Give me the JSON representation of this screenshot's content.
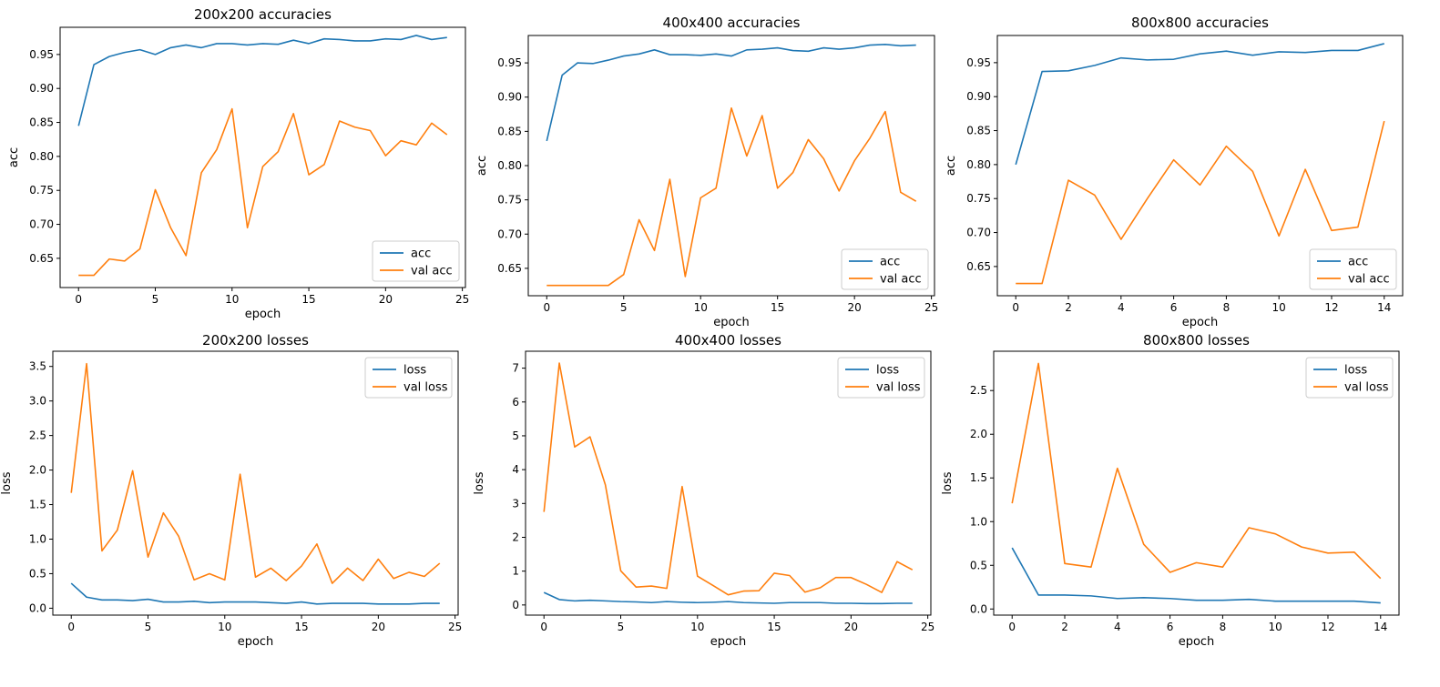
{
  "colors": {
    "series1": "#1f77b4",
    "series2": "#ff7f0e"
  },
  "chart_data": [
    {
      "type": "line",
      "title": "200x200 accuracies",
      "xlabel": "epoch",
      "ylabel": "acc",
      "xlim": [
        -1.2,
        25.2
      ],
      "ylim": [
        0.607,
        0.99
      ],
      "xticks": [
        0,
        5,
        10,
        15,
        20,
        25
      ],
      "yticks": [
        0.65,
        0.7,
        0.75,
        0.8,
        0.85,
        0.9,
        0.95
      ],
      "ytick_decimals": 2,
      "legend": "bottom-right",
      "series": [
        {
          "name": "acc",
          "x": [
            0,
            1,
            2,
            3,
            4,
            5,
            6,
            7,
            8,
            9,
            10,
            11,
            12,
            13,
            14,
            15,
            16,
            17,
            18,
            19,
            20,
            21,
            22,
            23,
            24
          ],
          "values": [
            0.845,
            0.935,
            0.947,
            0.953,
            0.957,
            0.95,
            0.96,
            0.964,
            0.96,
            0.966,
            0.966,
            0.964,
            0.966,
            0.965,
            0.971,
            0.966,
            0.973,
            0.972,
            0.97,
            0.97,
            0.973,
            0.972,
            0.978,
            0.972,
            0.975
          ]
        },
        {
          "name": "val acc",
          "x": [
            0,
            1,
            2,
            3,
            4,
            5,
            6,
            7,
            8,
            9,
            10,
            11,
            12,
            13,
            14,
            15,
            16,
            17,
            18,
            19,
            20,
            21,
            22,
            23,
            24
          ],
          "values": [
            0.625,
            0.625,
            0.649,
            0.646,
            0.664,
            0.751,
            0.695,
            0.654,
            0.776,
            0.81,
            0.87,
            0.695,
            0.785,
            0.807,
            0.863,
            0.773,
            0.788,
            0.852,
            0.843,
            0.838,
            0.801,
            0.823,
            0.817,
            0.849,
            0.832
          ]
        }
      ]
    },
    {
      "type": "line",
      "title": "400x400 accuracies",
      "xlabel": "epoch",
      "ylabel": "acc",
      "xlim": [
        -1.2,
        25.2
      ],
      "ylim": [
        0.61,
        0.99
      ],
      "xticks": [
        0,
        5,
        10,
        15,
        20,
        25
      ],
      "yticks": [
        0.65,
        0.7,
        0.75,
        0.8,
        0.85,
        0.9,
        0.95
      ],
      "ytick_decimals": 2,
      "legend": "bottom-right",
      "series": [
        {
          "name": "acc",
          "x": [
            0,
            1,
            2,
            3,
            4,
            5,
            6,
            7,
            8,
            9,
            10,
            11,
            12,
            13,
            14,
            15,
            16,
            17,
            18,
            19,
            20,
            21,
            22,
            23,
            24
          ],
          "values": [
            0.836,
            0.932,
            0.95,
            0.949,
            0.954,
            0.96,
            0.963,
            0.969,
            0.962,
            0.962,
            0.961,
            0.963,
            0.96,
            0.969,
            0.97,
            0.972,
            0.968,
            0.967,
            0.972,
            0.97,
            0.972,
            0.976,
            0.977,
            0.975,
            0.976
          ]
        },
        {
          "name": "val acc",
          "x": [
            0,
            1,
            2,
            3,
            4,
            5,
            6,
            7,
            8,
            9,
            10,
            11,
            12,
            13,
            14,
            15,
            16,
            17,
            18,
            19,
            20,
            21,
            22,
            23,
            24
          ],
          "values": [
            0.625,
            0.625,
            0.625,
            0.625,
            0.625,
            0.641,
            0.721,
            0.676,
            0.78,
            0.638,
            0.753,
            0.767,
            0.884,
            0.814,
            0.873,
            0.767,
            0.79,
            0.838,
            0.81,
            0.763,
            0.807,
            0.84,
            0.879,
            0.761,
            0.748
          ]
        }
      ]
    },
    {
      "type": "line",
      "title": "800x800 accuracies",
      "xlabel": "epoch",
      "ylabel": "acc",
      "xlim": [
        -0.7,
        14.7
      ],
      "ylim": [
        0.607,
        0.99
      ],
      "xticks": [
        0,
        2,
        4,
        6,
        8,
        10,
        12,
        14
      ],
      "yticks": [
        0.65,
        0.7,
        0.75,
        0.8,
        0.85,
        0.9,
        0.95
      ],
      "ytick_decimals": 2,
      "legend": "bottom-right",
      "series": [
        {
          "name": "acc",
          "x": [
            0,
            1,
            2,
            3,
            4,
            5,
            6,
            7,
            8,
            9,
            10,
            11,
            12,
            13,
            14
          ],
          "values": [
            0.8,
            0.937,
            0.938,
            0.946,
            0.957,
            0.954,
            0.955,
            0.963,
            0.967,
            0.961,
            0.966,
            0.965,
            0.968,
            0.968,
            0.978
          ]
        },
        {
          "name": "val acc",
          "x": [
            0,
            1,
            2,
            3,
            4,
            5,
            6,
            7,
            8,
            9,
            10,
            11,
            12,
            13,
            14
          ],
          "values": [
            0.625,
            0.625,
            0.777,
            0.755,
            0.69,
            0.75,
            0.807,
            0.77,
            0.827,
            0.79,
            0.695,
            0.793,
            0.703,
            0.708,
            0.864
          ]
        }
      ]
    },
    {
      "type": "line",
      "title": "200x200 losses",
      "xlabel": "epoch",
      "ylabel": "loss",
      "xlim": [
        -1.2,
        25.2
      ],
      "ylim": [
        -0.1,
        3.72
      ],
      "xticks": [
        0,
        5,
        10,
        15,
        20,
        25
      ],
      "yticks": [
        0.0,
        0.5,
        1.0,
        1.5,
        2.0,
        2.5,
        3.0,
        3.5
      ],
      "ytick_decimals": 1,
      "legend": "top-right",
      "series": [
        {
          "name": "loss",
          "x": [
            0,
            1,
            2,
            3,
            4,
            5,
            6,
            7,
            8,
            9,
            10,
            11,
            12,
            13,
            14,
            15,
            16,
            17,
            18,
            19,
            20,
            21,
            22,
            23,
            24
          ],
          "values": [
            0.36,
            0.16,
            0.12,
            0.12,
            0.11,
            0.13,
            0.09,
            0.09,
            0.1,
            0.08,
            0.09,
            0.09,
            0.09,
            0.08,
            0.07,
            0.09,
            0.06,
            0.07,
            0.07,
            0.07,
            0.06,
            0.06,
            0.06,
            0.07,
            0.07
          ]
        },
        {
          "name": "val loss",
          "x": [
            0,
            1,
            2,
            3,
            4,
            5,
            6,
            7,
            8,
            9,
            10,
            11,
            12,
            13,
            14,
            15,
            16,
            17,
            18,
            19,
            20,
            21,
            22,
            23,
            24
          ],
          "values": [
            1.67,
            3.54,
            0.83,
            1.13,
            1.99,
            0.74,
            1.38,
            1.04,
            0.41,
            0.5,
            0.41,
            1.94,
            0.45,
            0.58,
            0.4,
            0.61,
            0.93,
            0.36,
            0.58,
            0.4,
            0.71,
            0.43,
            0.52,
            0.46,
            0.65
          ]
        }
      ]
    },
    {
      "type": "line",
      "title": "400x400 losses",
      "xlabel": "epoch",
      "ylabel": "loss",
      "xlim": [
        -1.2,
        25.2
      ],
      "ylim": [
        -0.3,
        7.5
      ],
      "xticks": [
        0,
        5,
        10,
        15,
        20,
        25
      ],
      "yticks": [
        0,
        1,
        2,
        3,
        4,
        5,
        6,
        7
      ],
      "ytick_decimals": 0,
      "legend": "top-right",
      "series": [
        {
          "name": "loss",
          "x": [
            0,
            1,
            2,
            3,
            4,
            5,
            6,
            7,
            8,
            9,
            10,
            11,
            12,
            13,
            14,
            15,
            16,
            17,
            18,
            19,
            20,
            21,
            22,
            23,
            24
          ],
          "values": [
            0.37,
            0.16,
            0.12,
            0.14,
            0.12,
            0.1,
            0.09,
            0.07,
            0.1,
            0.08,
            0.07,
            0.08,
            0.1,
            0.07,
            0.06,
            0.05,
            0.07,
            0.07,
            0.07,
            0.05,
            0.05,
            0.04,
            0.04,
            0.05,
            0.05
          ]
        },
        {
          "name": "val loss",
          "x": [
            0,
            1,
            2,
            3,
            4,
            5,
            6,
            7,
            8,
            9,
            10,
            11,
            12,
            13,
            14,
            15,
            16,
            17,
            18,
            19,
            20,
            21,
            22,
            23,
            24
          ],
          "values": [
            2.75,
            7.15,
            4.67,
            4.97,
            3.55,
            1.01,
            0.53,
            0.56,
            0.49,
            3.5,
            0.85,
            0.58,
            0.3,
            0.41,
            0.42,
            0.94,
            0.87,
            0.38,
            0.51,
            0.81,
            0.81,
            0.61,
            0.37,
            1.28,
            1.04
          ]
        }
      ]
    },
    {
      "type": "line",
      "title": "800x800 losses",
      "xlabel": "epoch",
      "ylabel": "loss",
      "xlim": [
        -0.7,
        14.7
      ],
      "ylim": [
        -0.07,
        2.95
      ],
      "xticks": [
        0,
        2,
        4,
        6,
        8,
        10,
        12,
        14
      ],
      "yticks": [
        0.0,
        0.5,
        1.0,
        1.5,
        2.0,
        2.5
      ],
      "ytick_decimals": 1,
      "legend": "top-right",
      "series": [
        {
          "name": "loss",
          "x": [
            0,
            1,
            2,
            3,
            4,
            5,
            6,
            7,
            8,
            9,
            10,
            11,
            12,
            13,
            14
          ],
          "values": [
            0.7,
            0.16,
            0.16,
            0.15,
            0.12,
            0.13,
            0.12,
            0.1,
            0.1,
            0.11,
            0.09,
            0.09,
            0.09,
            0.09,
            0.07
          ]
        },
        {
          "name": "val loss",
          "x": [
            0,
            1,
            2,
            3,
            4,
            5,
            6,
            7,
            8,
            9,
            10,
            11,
            12,
            13,
            14
          ],
          "values": [
            1.21,
            2.81,
            0.52,
            0.48,
            1.61,
            0.74,
            0.42,
            0.53,
            0.48,
            0.93,
            0.86,
            0.71,
            0.64,
            0.65,
            0.35
          ]
        }
      ]
    }
  ]
}
